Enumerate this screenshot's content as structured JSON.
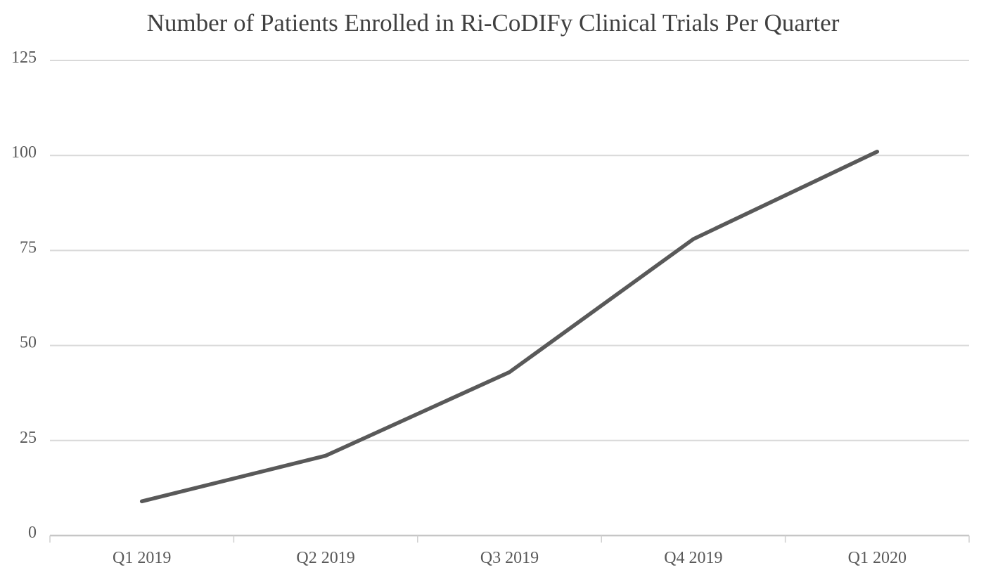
{
  "chart_data": {
    "type": "line",
    "title": "Number of Patients Enrolled in Ri-CoDIFy Clinical Trials Per Quarter",
    "categories": [
      "Q1 2019",
      "Q2 2019",
      "Q3 2019",
      "Q4 2019",
      "Q1 2020"
    ],
    "values": [
      9,
      21,
      43,
      78,
      101
    ],
    "xlabel": "",
    "ylabel": "",
    "ylim": [
      0,
      125
    ],
    "yticks": [
      0,
      25,
      50,
      75,
      100,
      125
    ],
    "grid": "horizontal-gridlines",
    "legend": "none",
    "markers": "none",
    "colors": {
      "series_line": "#595959",
      "gridline": "#D9D9D9",
      "axis_line": "#C6C6C6",
      "tick_mark": "#CFCFCF",
      "tick_label": "#595959",
      "title": "#404040",
      "background": "#FFFFFF"
    }
  }
}
